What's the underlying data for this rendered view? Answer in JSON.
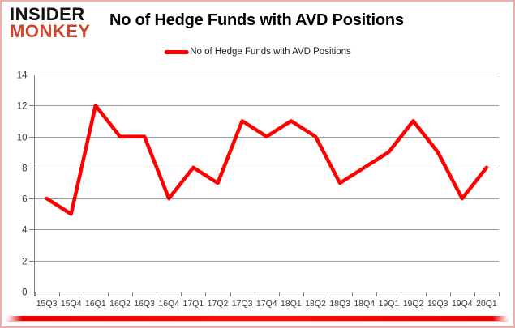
{
  "branding": {
    "line1": "INSIDER",
    "line2": "MONKEY"
  },
  "header": {
    "title": "No of Hedge Funds with AVD Positions"
  },
  "legend": {
    "label": "No of Hedge Funds with AVD Positions"
  },
  "colors": {
    "line": "#ff0000",
    "logo_black": "#111111",
    "logo_red": "#c9452e",
    "grid": "#9b9b9b",
    "axis": "#808080",
    "tick_label": "#3a3a3a",
    "border_pink": "#f2abab",
    "bottom_bar": "#e60000"
  },
  "chart_data": {
    "type": "line",
    "title": "No of Hedge Funds with AVD Positions",
    "categories": [
      "15Q3",
      "15Q4",
      "16Q1",
      "16Q2",
      "16Q3",
      "16Q4",
      "17Q1",
      "17Q2",
      "17Q3",
      "17Q4",
      "18Q1",
      "18Q2",
      "18Q3",
      "18Q4",
      "19Q1",
      "19Q2",
      "19Q3",
      "19Q4",
      "20Q1"
    ],
    "series": [
      {
        "name": "No of Hedge Funds with AVD Positions",
        "values": [
          6,
          5,
          12,
          10,
          10,
          6,
          8,
          7,
          11,
          10,
          11,
          10,
          7,
          8,
          9,
          11,
          9,
          6,
          8
        ]
      }
    ],
    "xlabel": "",
    "ylabel": "",
    "ylim": [
      0,
      14
    ],
    "ytick_step": 2,
    "grid": true,
    "legend_position": "top-center"
  }
}
